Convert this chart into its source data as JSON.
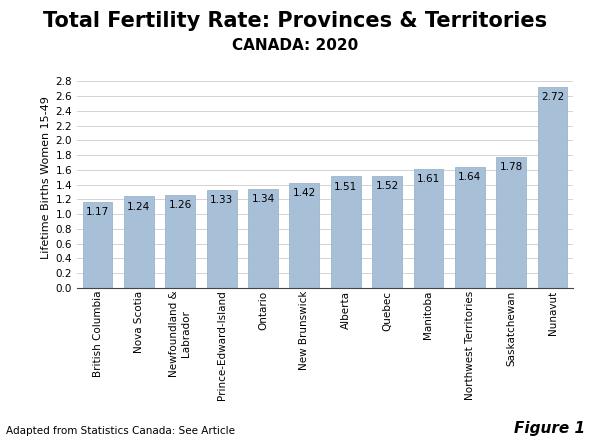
{
  "title": "Total Fertility Rate: Provinces & Territories",
  "subtitle": "CANADA: 2020",
  "ylabel": "Lifetime Births Women 15-49",
  "categories": [
    "British Columbia",
    "Nova Scotia",
    "Newfoundland &\nLabrador",
    "Prince-Edward-Island",
    "Ontario",
    "New Brunswick",
    "Alberta",
    "Quebec",
    "Manitoba",
    "Northwest Territories",
    "Saskatchewan",
    "Nunavut"
  ],
  "values": [
    1.17,
    1.24,
    1.26,
    1.33,
    1.34,
    1.42,
    1.51,
    1.52,
    1.61,
    1.64,
    1.78,
    2.72
  ],
  "bar_color": "#a8bfd8",
  "bar_edgecolor": "#8faec8",
  "ylim": [
    0.0,
    3.0
  ],
  "yticks": [
    0.0,
    0.2,
    0.4,
    0.6,
    0.8,
    1.0,
    1.2,
    1.4,
    1.6,
    1.8,
    2.0,
    2.2,
    2.4,
    2.6,
    2.8
  ],
  "footnote": "Adapted from Statistics Canada: See Article",
  "figure_label": "Figure 1",
  "title_fontsize": 15,
  "subtitle_fontsize": 11,
  "ylabel_fontsize": 8,
  "tick_fontsize": 7.5,
  "label_fontsize": 7.5,
  "footnote_fontsize": 7.5,
  "figure_label_fontsize": 11,
  "background_color": "#ffffff"
}
